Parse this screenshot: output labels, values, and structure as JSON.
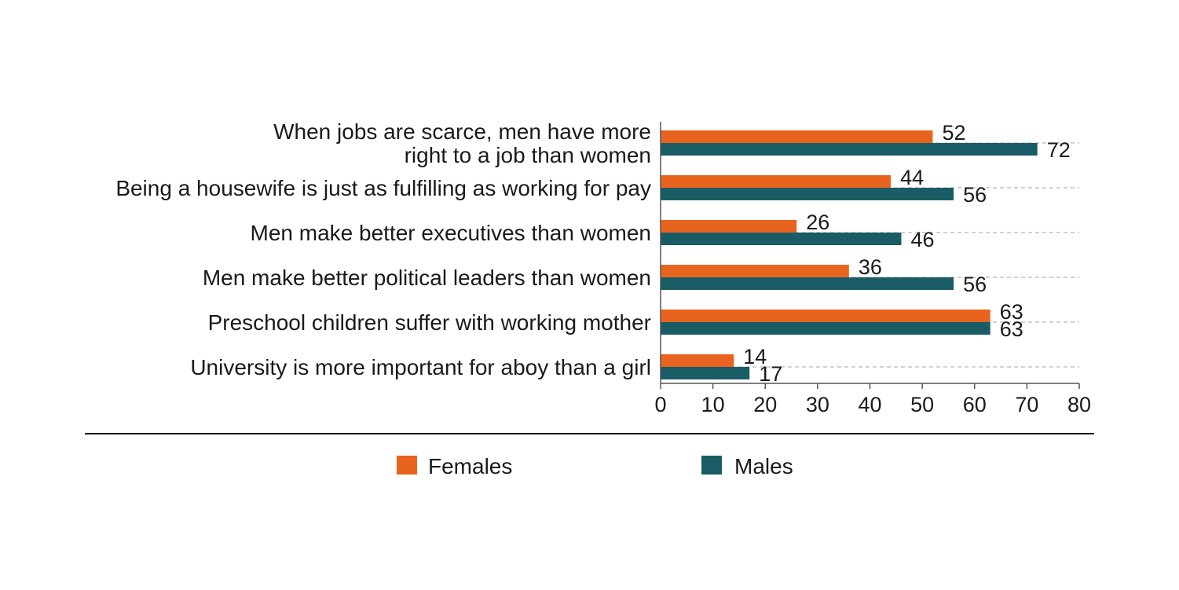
{
  "chart_data": {
    "type": "bar",
    "orientation": "horizontal",
    "categories": [
      [
        "When jobs are scarce, men have more",
        "right to a job than women"
      ],
      [
        "Being a housewife is just as fulfilling as working for pay"
      ],
      [
        "Men make better executives than women"
      ],
      [
        "Men make better political leaders than women"
      ],
      [
        "Preschool children suffer with working mother"
      ],
      [
        "University is more important for aboy than a girl"
      ]
    ],
    "series": [
      {
        "name": "Females",
        "color": "#E8641E",
        "values": [
          52,
          44,
          26,
          36,
          63,
          14
        ]
      },
      {
        "name": "Males",
        "color": "#1A5C66",
        "values": [
          72,
          56,
          46,
          56,
          63,
          17
        ]
      }
    ],
    "xlim": [
      0,
      80
    ],
    "xticks": [
      "0",
      "10",
      "20",
      "30",
      "40",
      "50",
      "60",
      "70",
      "80"
    ],
    "grid": "dashed horizontal",
    "legend": "bottom"
  }
}
